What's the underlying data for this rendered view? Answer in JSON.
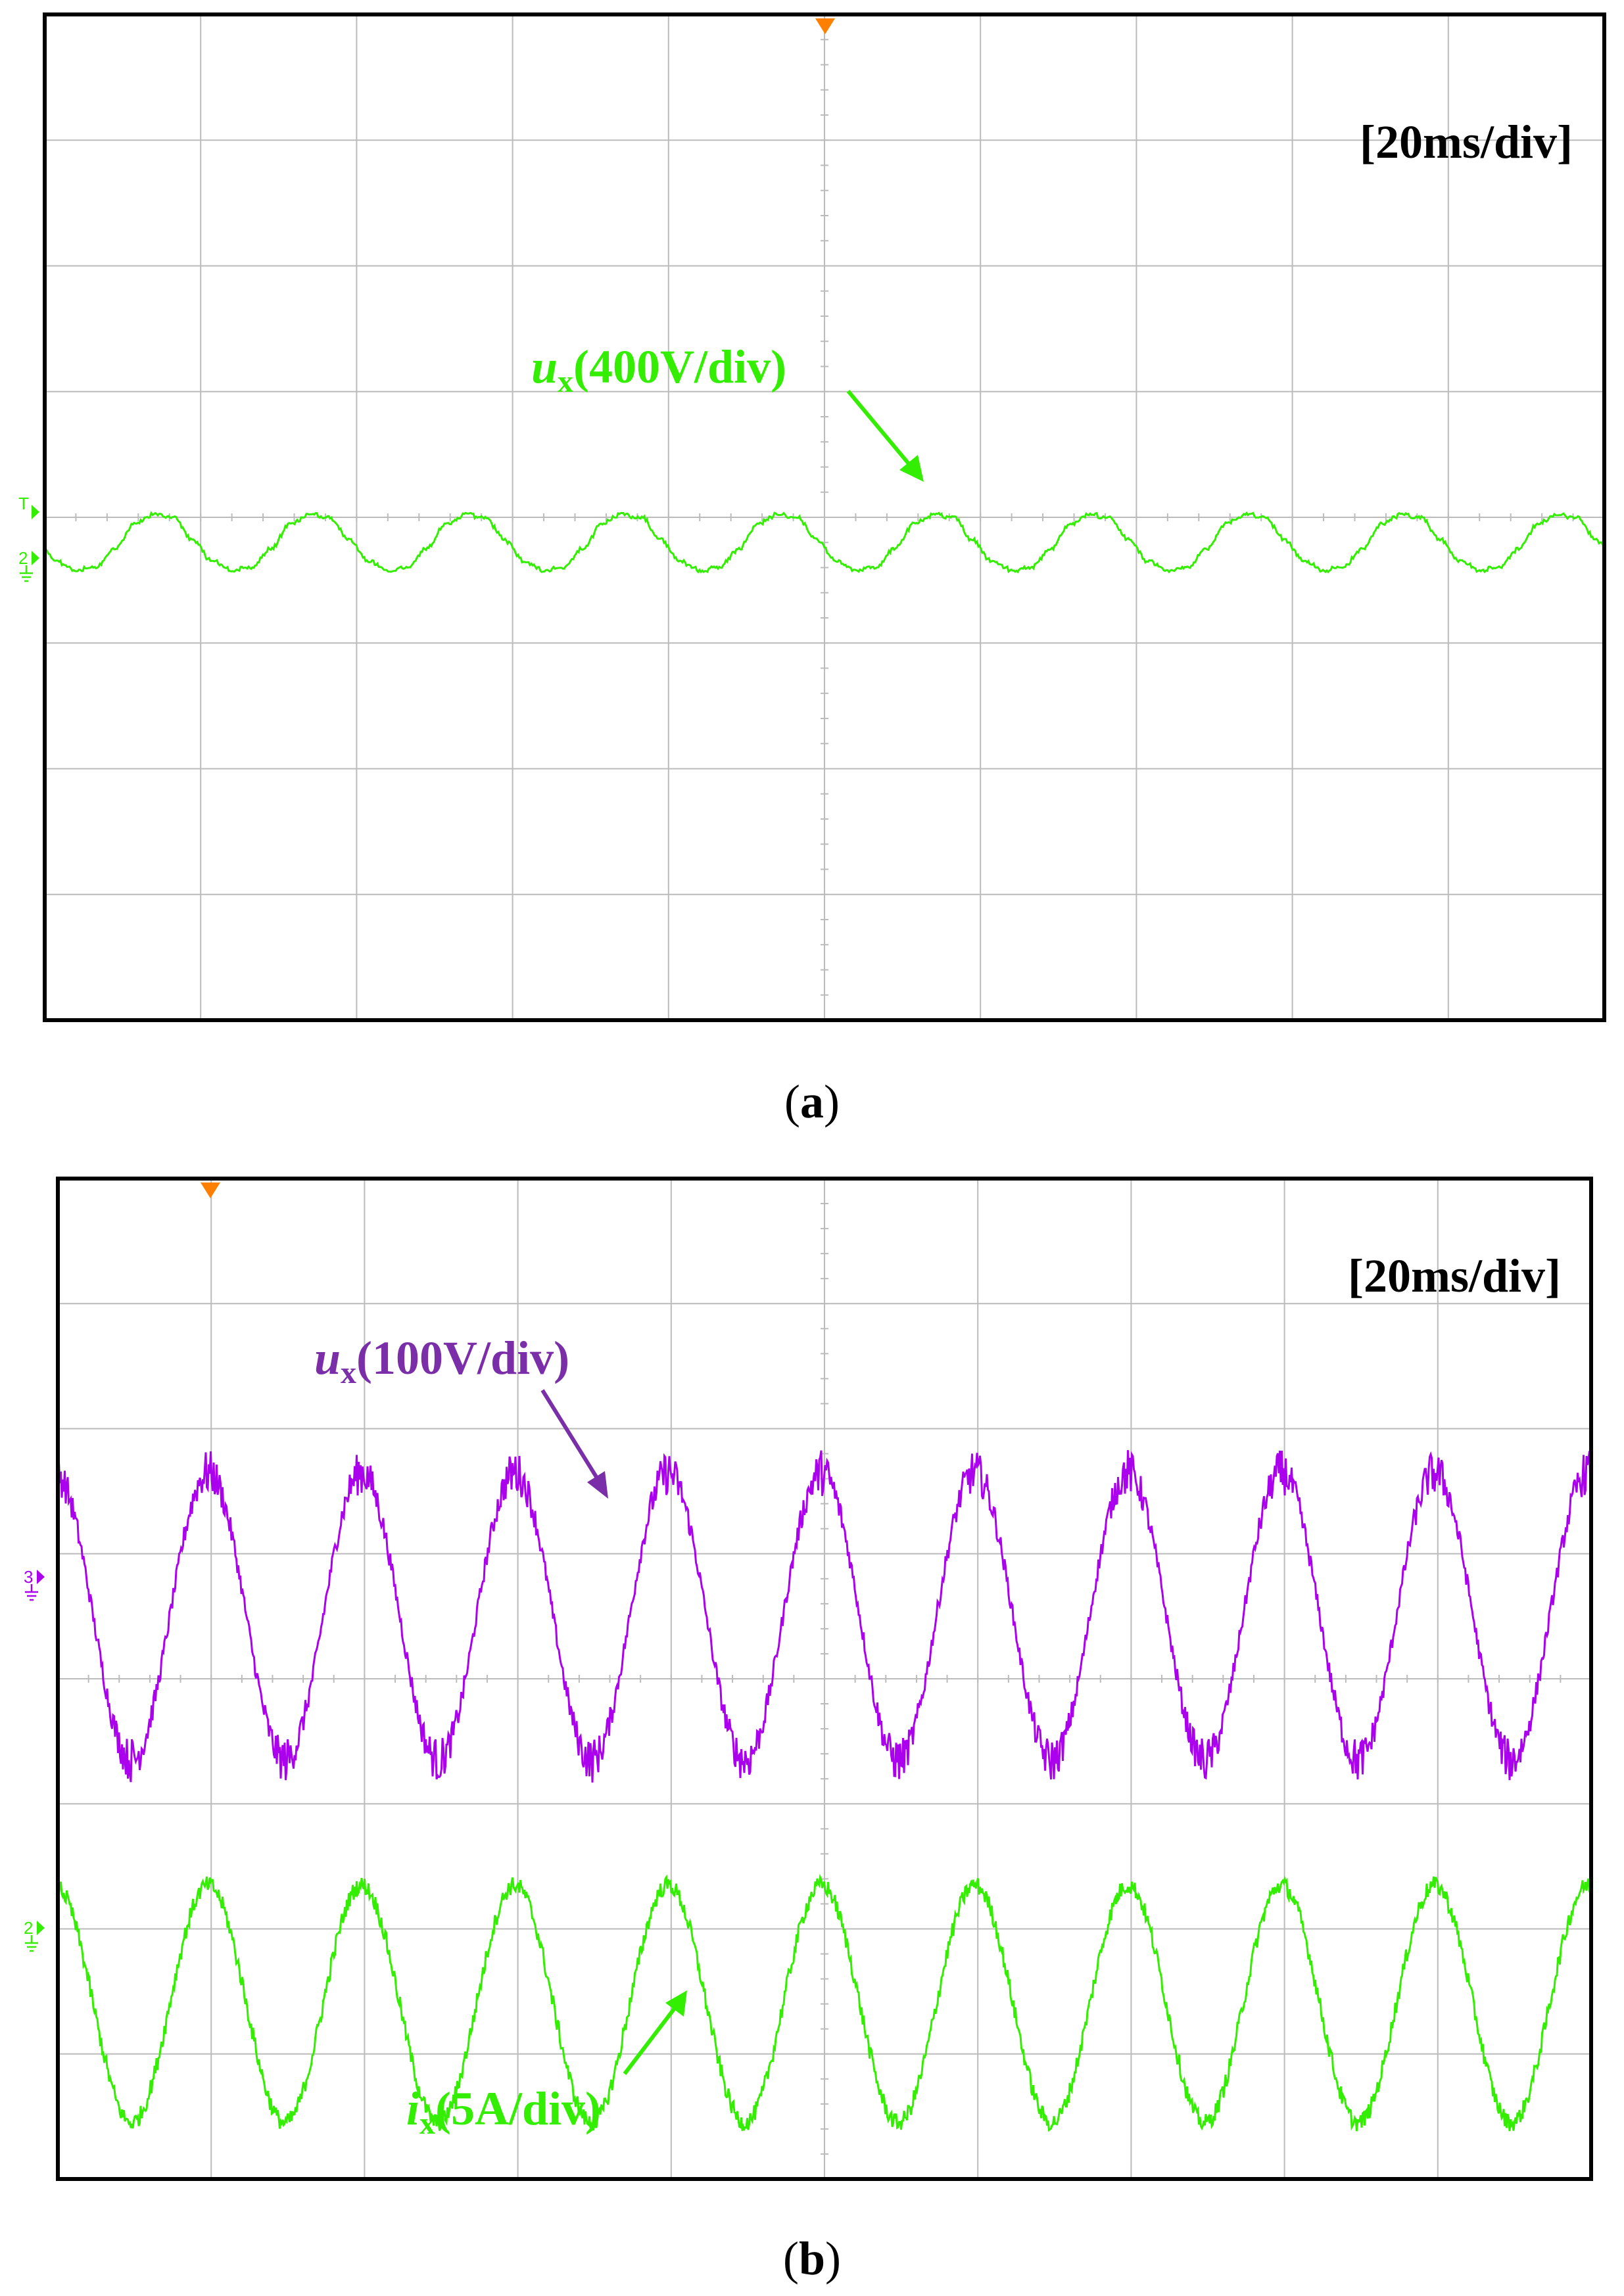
{
  "colors": {
    "green": "#33ee00",
    "purple": "#aa00ee",
    "purple_label": "#7a2ea8",
    "trigger": "#ff7f00",
    "grid": "#bbbbbb",
    "frame": "#000000"
  },
  "chart_data": [
    {
      "type": "line",
      "panel_label": "(a)",
      "panel_label_letter": "a",
      "timebase": "[20ms/div]",
      "divisions": {
        "x": 10,
        "y": 8
      },
      "xlim_ms": [
        0,
        200
      ],
      "ylim_div": [
        -4,
        4
      ],
      "grid": true,
      "markers": {
        "trigger_level": "T",
        "channel": "2"
      },
      "series": [
        {
          "name": "u",
          "name_subscript": "x",
          "scale": "(400V/div)",
          "label": "ux(400V/div)",
          "color": "#33ee00",
          "channel_marker": "2",
          "frequency_hz": 50,
          "waveform": "quasi-square stepped",
          "offset_div": -0.2,
          "amplitude_div": 0.22,
          "x_ms": [
            0,
            2.5,
            5,
            7.5,
            10,
            12.5,
            15,
            17.5,
            20
          ],
          "y_div": [
            0.22,
            0.2,
            0.02,
            -0.15,
            -0.22,
            -0.2,
            -0.05,
            0.15,
            0.22
          ]
        }
      ]
    },
    {
      "type": "line",
      "panel_label": "(b)",
      "panel_label_letter": "b",
      "timebase": "[20ms/div]",
      "divisions": {
        "x": 10,
        "y": 8
      },
      "xlim_ms": [
        0,
        200
      ],
      "ylim_div": [
        -4,
        4
      ],
      "grid": true,
      "markers": {
        "channel_u": "3",
        "channel_i": "2"
      },
      "series": [
        {
          "name": "u",
          "name_subscript": "x",
          "scale": "(100V/div)",
          "label": "ux(100V/div)",
          "color": "#aa00ee",
          "channel_marker": "3",
          "frequency_hz": 50,
          "waveform": "sinusoidal",
          "offset_div": 0.0,
          "amplitude_div": 1.15
        },
        {
          "name": "i",
          "name_subscript": "x",
          "scale": "(5A/div)",
          "label": "ix(5A/div)",
          "color": "#33ee00",
          "channel_marker": "2",
          "frequency_hz": 50,
          "waveform": "sinusoidal",
          "offset_div": 0.0,
          "amplitude_div": 0.95
        }
      ]
    }
  ]
}
